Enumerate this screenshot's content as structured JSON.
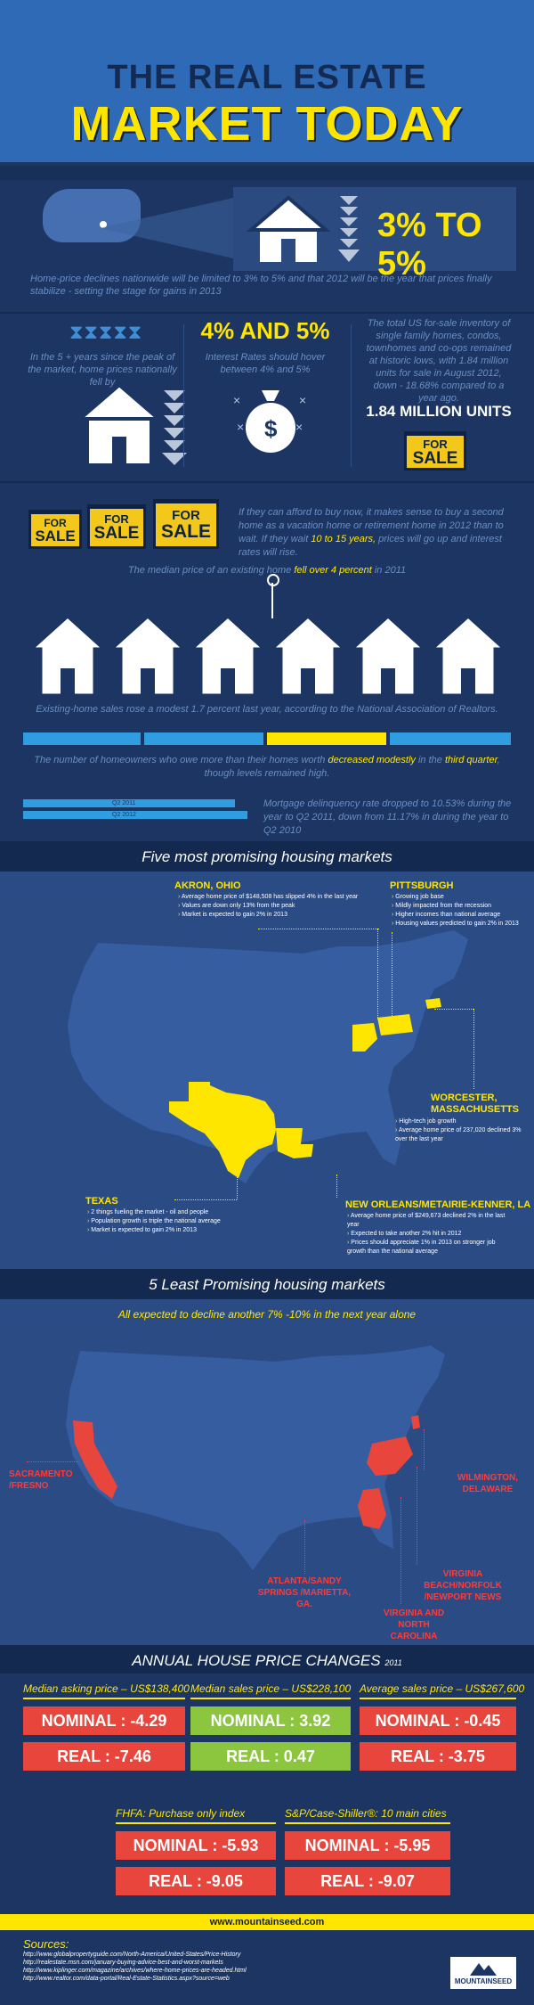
{
  "header": {
    "title_line1": "THE REAL ESTATE",
    "title_line2": "MARKET TODAY"
  },
  "section1": {
    "headline": "3% TO 5%",
    "text": "Home-price declines nationwide will be limited to 3% to 5% and that 2012 will be the year that prices finally stabilize - setting the stage for gains in 2013"
  },
  "section2": {
    "col1_text": "In the 5 + years since the peak of the market, home prices nationally fell by",
    "col2_heading": "4% AND 5%",
    "col2_text": "Interest Rates should hover between 4% and 5%",
    "col3_text": "The total US for-sale inventory of single family homes, condos, townhomes and co-ops remained at historic lows, with 1.84 million units for sale in August 2012, down - 18.68% compared to a year ago.",
    "col3_units": "1.84 MILLION UNITS",
    "sign_for": "FOR",
    "sign_sale": "SALE"
  },
  "section3": {
    "text_a": "If they can afford to buy now, it makes sense to buy a second home as a vacation home or retirement home in 2012 than to wait. If they wait ",
    "text_hl": "10 to 15 years,",
    "text_b": " prices will go up and interest rates will rise."
  },
  "section4": {
    "median_a": "The median price of an existing home ",
    "median_hl": "fell over 4 percent",
    "median_b": " in 2011",
    "existing": "Existing-home sales rose a modest 1.7 percent last year, according to the National Association of Realtors.",
    "owners_a": "The number of homeowners who owe more than their homes worth ",
    "owners_hl1": "decreased modestly",
    "owners_mid": " in the ",
    "owners_hl2": "third quarter",
    "owners_b": ", though levels remained high.",
    "bar_label_1": "Q2 2011",
    "bar_label_2": "Q2 2012",
    "delinquency": "Mortgage delinquency rate dropped to 10.53% during the year to Q2 2011, down from 11.17% in during the year to Q2 2010"
  },
  "promising": {
    "title": "Five most promising housing markets",
    "akron": {
      "name": "AKRON, OHIO",
      "bullets": [
        "Average home price of $148,508 has slipped 4% in the last year",
        "Values are down only 13% from the peak",
        "Market is expected to gain 2% in 2013"
      ]
    },
    "pittsburgh": {
      "name": "PITTSBURGH",
      "bullets": [
        "Growing job base",
        "Mildly impacted from the recession",
        "Higher incomes than national average",
        "Housing values predicted to gain 2% in 2013"
      ]
    },
    "worcester": {
      "name": "WORCESTER, MASSACHUSETTS",
      "bullets": [
        "High-tech job growth",
        "Average home price of 237,020 declined 3% over the last year"
      ]
    },
    "texas": {
      "name": "TEXAS",
      "bullets": [
        "2 things fueling the market - oil and people",
        "Population growth is triple the national average",
        "Market is expected to gain 2% in 2013"
      ]
    },
    "neworleans": {
      "name": "NEW ORLEANS/METAIRIE-KENNER, LA",
      "bullets": [
        "Average home price of $249,673 declined 2% in the last year",
        "Expected to take another 2% hit in 2012",
        "Prices should appreciate 1% in 2013 on stronger job growth than the national average"
      ]
    }
  },
  "least": {
    "title": "5 Least Promising housing markets",
    "subtitle": "All expected to decline another 7% -10% in the next year alone",
    "sacramento": "SACRAMENTO /FRESNO",
    "wilmington": "WILMINGTON, DELAWARE",
    "atlanta": "ATLANTA/SANDY SPRINGS /MARIETTA, GA.",
    "virginiabeach": "VIRGINIA BEACH/NORFOLK /NEWPORT NEWS",
    "virginia_nc": "VIRGINIA AND NORTH CAROLINA"
  },
  "annual": {
    "title": "ANNUAL HOUSE PRICE CHANGES",
    "year": "2011",
    "cols": [
      {
        "heading": "Median asking price – US$138,400",
        "nominal": "NOMINAL : -4.29",
        "real": "REAL : -7.46"
      },
      {
        "heading": "Median sales price – US$228,100",
        "nominal": "NOMINAL : 3.92",
        "real": "REAL : 0.47"
      },
      {
        "heading": "Average sales price – US$267,600",
        "nominal": "NOMINAL : -0.45",
        "real": "REAL : -3.75"
      },
      {
        "heading": "FHFA: Purchase only index",
        "nominal": "NOMINAL : -5.93",
        "real": "REAL : -9.05"
      },
      {
        "heading": "S&P/Case-Shiller®: 10 main cities",
        "nominal": "NOMINAL : -5.95",
        "real": "REAL : -9.07"
      }
    ]
  },
  "footer": {
    "site": "www.mountainseed.com",
    "sources_heading": "Sources:",
    "links": [
      "http://www.globalpropertyguide.com/North-America/United-States/Price-History",
      "http://realestate.msn.com/january-buying-advice-best-and-worst-markets",
      "http://www.kiplinger.com/magazine/archives/where-home-prices-are-headed.html",
      "http://www.realtor.com/data-portal/Real-Estate-Statistics.aspx?source=web"
    ],
    "logo": "MOUNTAINSEED"
  },
  "colors": {
    "accent": "#ffe600",
    "navy": "#1c3562",
    "red": "#e8453c",
    "green": "#8cc63f",
    "bluebar": "#2f9de0"
  }
}
